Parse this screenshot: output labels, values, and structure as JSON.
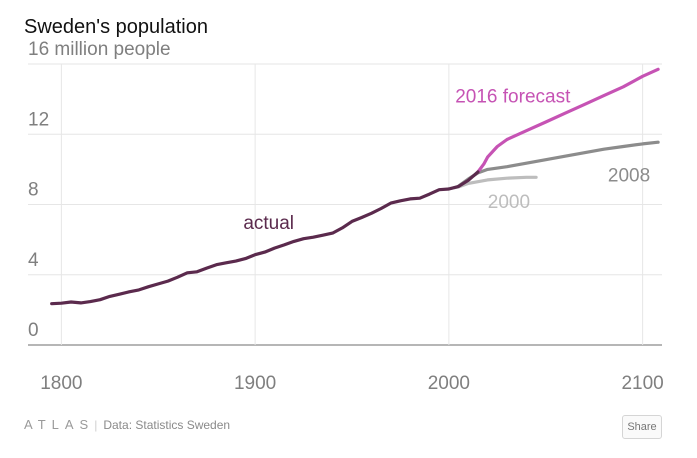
{
  "title": "Sweden's population",
  "footer": {
    "logo": "ATLAS",
    "source": "Data: Statistics Sweden",
    "share_label": "Share"
  },
  "chart_data": {
    "type": "line",
    "title": "Sweden's population",
    "ylabel": "16 million people",
    "ylim": [
      0,
      16
    ],
    "yticks": [
      {
        "value": 0,
        "label": "0"
      },
      {
        "value": 4,
        "label": "4"
      },
      {
        "value": 8,
        "label": "8"
      },
      {
        "value": 12,
        "label": "12"
      },
      {
        "value": 16,
        "label": "16 million people"
      }
    ],
    "xlim": [
      1790,
      2110
    ],
    "xticks": [
      {
        "value": 1800,
        "label": "1800"
      },
      {
        "value": 1900,
        "label": "1900"
      },
      {
        "value": 2000,
        "label": "2000"
      },
      {
        "value": 2100,
        "label": "2100"
      }
    ],
    "colors": {
      "actual": "#5b2a4d",
      "forecast2016": "#c653b4",
      "forecast2008": "#8c8c8c",
      "forecast2000": "#bdbdbd",
      "grid": "#e6e6e6",
      "baseline": "#8a8a8a"
    },
    "series": [
      {
        "id": "actual",
        "name": "actual",
        "x": [
          1795,
          1800,
          1805,
          1810,
          1815,
          1820,
          1825,
          1830,
          1835,
          1840,
          1845,
          1850,
          1855,
          1860,
          1865,
          1870,
          1875,
          1880,
          1885,
          1890,
          1895,
          1900,
          1905,
          1910,
          1915,
          1920,
          1925,
          1930,
          1935,
          1940,
          1945,
          1950,
          1955,
          1960,
          1965,
          1970,
          1975,
          1980,
          1985,
          1990,
          1995,
          2000,
          2005,
          2010,
          2015
        ],
        "y": [
          2.35,
          2.38,
          2.45,
          2.4,
          2.47,
          2.58,
          2.77,
          2.89,
          3.03,
          3.14,
          3.32,
          3.48,
          3.64,
          3.86,
          4.11,
          4.17,
          4.38,
          4.57,
          4.68,
          4.78,
          4.92,
          5.14,
          5.29,
          5.52,
          5.7,
          5.9,
          6.05,
          6.14,
          6.25,
          6.37,
          6.67,
          7.04,
          7.26,
          7.5,
          7.77,
          8.08,
          8.21,
          8.32,
          8.36,
          8.59,
          8.84,
          8.88,
          9.03,
          9.38,
          9.85
        ]
      },
      {
        "id": "forecast2016",
        "name": "2016 forecast",
        "x": [
          2015,
          2018,
          2020,
          2025,
          2030,
          2040,
          2050,
          2060,
          2070,
          2080,
          2090,
          2100,
          2108
        ],
        "y": [
          9.85,
          10.3,
          10.7,
          11.3,
          11.7,
          12.2,
          12.7,
          13.2,
          13.7,
          14.2,
          14.7,
          15.3,
          15.7
        ]
      },
      {
        "id": "forecast2008",
        "name": "2008",
        "x": [
          2005,
          2010,
          2015,
          2020,
          2030,
          2040,
          2050,
          2060,
          2070,
          2080,
          2090,
          2100,
          2108
        ],
        "y": [
          9.05,
          9.45,
          9.8,
          10.0,
          10.15,
          10.35,
          10.55,
          10.75,
          10.95,
          11.15,
          11.3,
          11.45,
          11.55
        ]
      },
      {
        "id": "forecast2000",
        "name": "2000",
        "x": [
          2000,
          2005,
          2010,
          2020,
          2030,
          2040,
          2045
        ],
        "y": [
          8.9,
          9.0,
          9.2,
          9.4,
          9.5,
          9.55,
          9.55
        ]
      }
    ],
    "labels": [
      {
        "series": "actual",
        "text": "actual",
        "x": 1907,
        "y": 6.6
      },
      {
        "series": "forecast2016",
        "text": "2016 forecast",
        "x": 2033,
        "y": 13.8
      },
      {
        "series": "forecast2008",
        "text": "2008",
        "x": 2093,
        "y": 9.3
      },
      {
        "series": "forecast2000",
        "text": "2000",
        "x": 2031,
        "y": 7.8
      }
    ]
  }
}
